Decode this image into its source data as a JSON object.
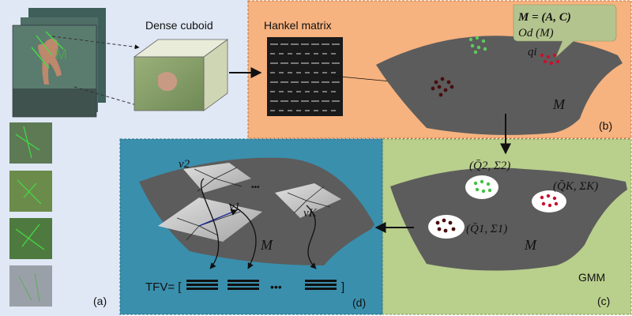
{
  "panels": {
    "a": {
      "tag": "(a)",
      "caption": "Dense cuboid"
    },
    "b": {
      "tag": "(b)",
      "caption": "Hankel matrix",
      "model_line1": "M = (A, C)",
      "model_line2": "Od (M)",
      "point_label": "qi",
      "manifold": "M"
    },
    "c": {
      "tag": "(c)",
      "gmm": "GMM",
      "manifold": "M",
      "cluster1": "(Q̄1, Σ1)",
      "cluster2": "(Q̄2, Σ2)",
      "clusterK": "(Q̄K, ΣK)"
    },
    "d": {
      "tag": "(d)",
      "manifold": "M",
      "v1": "v1",
      "v2": "v2",
      "vK": "vK",
      "dots": "•••",
      "tfv_prefix": "TFV= [",
      "tfv_suffix": "]",
      "tfv_dots": "•••"
    }
  },
  "colors": {
    "panel_a_bg": "#dfe8f4",
    "panel_b_bg": "#f6b27f",
    "panel_c_bg": "#b9cf8c",
    "panel_d_bg": "#3a8fad",
    "manifold": "#5c5c5c",
    "cluster_green": "#43c043",
    "cluster_red": "#c8102e",
    "cluster_dark": "#4a0d0d",
    "tooltip": "#b4c48f"
  }
}
